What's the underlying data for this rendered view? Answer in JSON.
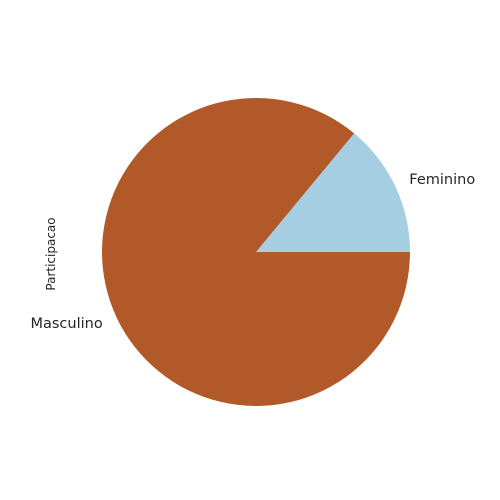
{
  "chart_data": {
    "type": "pie",
    "ylabel": "Participacao",
    "title": "",
    "categories": [
      "Feminino",
      "Masculino"
    ],
    "values": [
      14,
      86
    ],
    "colors": [
      "#a6cee3",
      "#b15928"
    ],
    "start_angle_deg": 0,
    "direction": "counterclockwise",
    "legend": "none"
  }
}
